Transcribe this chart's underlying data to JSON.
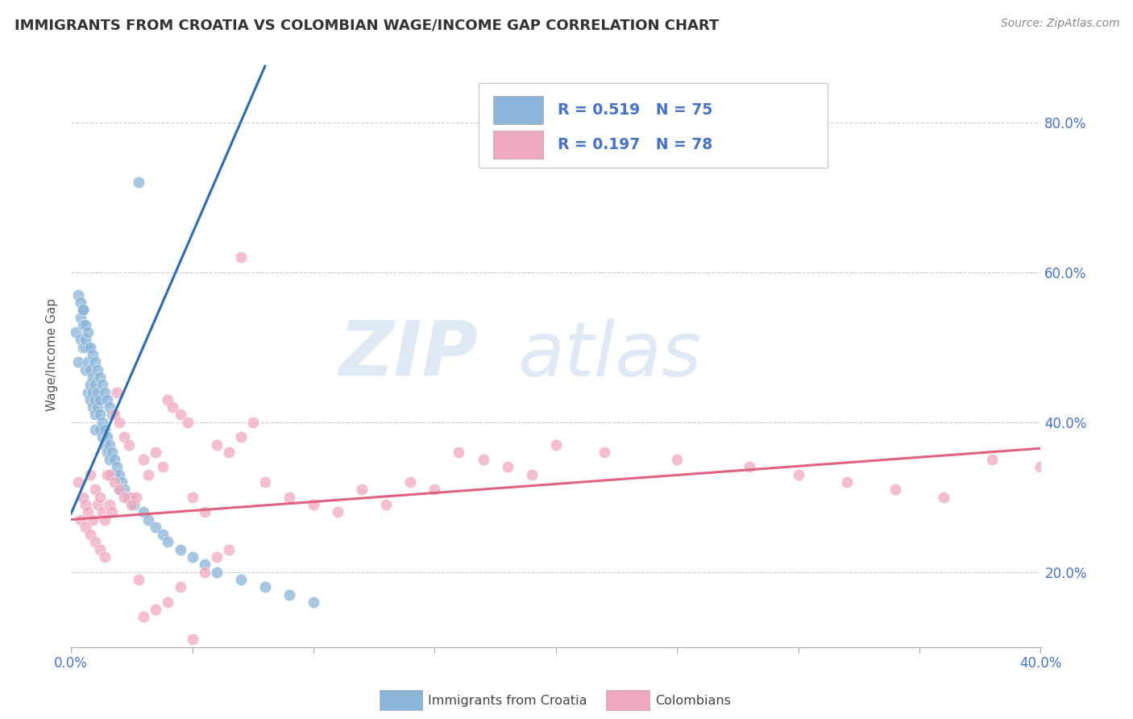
{
  "title": "IMMIGRANTS FROM CROATIA VS COLOMBIAN WAGE/INCOME GAP CORRELATION CHART",
  "source": "Source: ZipAtlas.com",
  "ylabel_label": "Wage/Income Gap",
  "xlim": [
    0.0,
    0.4
  ],
  "ylim": [
    0.1,
    0.88
  ],
  "yticks": [
    0.2,
    0.4,
    0.6,
    0.8
  ],
  "ytick_labels": [
    "20.0%",
    "40.0%",
    "60.0%",
    "80.0%"
  ],
  "xticks": [
    0.0,
    0.05,
    0.1,
    0.15,
    0.2,
    0.25,
    0.3,
    0.35,
    0.4
  ],
  "xtick_labels": [
    "0.0%",
    "",
    "",
    "",
    "",
    "",
    "",
    "",
    "40.0%"
  ],
  "blue_color": "#8ab4d8",
  "pink_color": "#f0a8bf",
  "blue_line_color": "#2a6db5",
  "pink_line_color": "#e06080",
  "legend_R1": "R = 0.519",
  "legend_N1": "N = 75",
  "legend_R2": "R = 0.197",
  "legend_N2": "N = 78",
  "legend_label1": "Immigrants from Croatia",
  "legend_label2": "Colombians",
  "watermark_ZIP": "ZIP",
  "watermark_atlas": "atlas",
  "tick_color": "#4472c4",
  "ylabel_color": "#555555",
  "blue_x": [
    0.002,
    0.003,
    0.004,
    0.004,
    0.005,
    0.005,
    0.005,
    0.006,
    0.006,
    0.007,
    0.007,
    0.007,
    0.008,
    0.008,
    0.008,
    0.009,
    0.009,
    0.009,
    0.01,
    0.01,
    0.01,
    0.01,
    0.011,
    0.011,
    0.012,
    0.012,
    0.012,
    0.013,
    0.013,
    0.014,
    0.014,
    0.015,
    0.015,
    0.016,
    0.016,
    0.017,
    0.018,
    0.018,
    0.019,
    0.02,
    0.02,
    0.021,
    0.022,
    0.024,
    0.026,
    0.028,
    0.03,
    0.032,
    0.035,
    0.038,
    0.04,
    0.045,
    0.05,
    0.055,
    0.06,
    0.07,
    0.08,
    0.09,
    0.1,
    0.003,
    0.004,
    0.005,
    0.006,
    0.006,
    0.007,
    0.008,
    0.009,
    0.01,
    0.011,
    0.012,
    0.013,
    0.014,
    0.015,
    0.016,
    0.017
  ],
  "blue_y": [
    0.52,
    0.48,
    0.51,
    0.54,
    0.5,
    0.53,
    0.55,
    0.5,
    0.47,
    0.5,
    0.48,
    0.44,
    0.47,
    0.45,
    0.43,
    0.46,
    0.44,
    0.42,
    0.45,
    0.43,
    0.41,
    0.39,
    0.44,
    0.42,
    0.43,
    0.41,
    0.39,
    0.4,
    0.38,
    0.39,
    0.37,
    0.38,
    0.36,
    0.37,
    0.35,
    0.36,
    0.35,
    0.33,
    0.34,
    0.33,
    0.31,
    0.32,
    0.31,
    0.3,
    0.29,
    0.72,
    0.28,
    0.27,
    0.26,
    0.25,
    0.24,
    0.23,
    0.22,
    0.21,
    0.2,
    0.19,
    0.18,
    0.17,
    0.16,
    0.57,
    0.56,
    0.55,
    0.53,
    0.51,
    0.52,
    0.5,
    0.49,
    0.48,
    0.47,
    0.46,
    0.45,
    0.44,
    0.43,
    0.42,
    0.41
  ],
  "pink_x": [
    0.003,
    0.005,
    0.006,
    0.007,
    0.008,
    0.009,
    0.01,
    0.011,
    0.012,
    0.013,
    0.014,
    0.015,
    0.016,
    0.017,
    0.018,
    0.019,
    0.02,
    0.022,
    0.024,
    0.025,
    0.027,
    0.03,
    0.032,
    0.035,
    0.038,
    0.04,
    0.042,
    0.045,
    0.048,
    0.05,
    0.055,
    0.06,
    0.065,
    0.07,
    0.075,
    0.08,
    0.09,
    0.1,
    0.11,
    0.12,
    0.13,
    0.14,
    0.15,
    0.16,
    0.17,
    0.18,
    0.19,
    0.2,
    0.22,
    0.25,
    0.28,
    0.3,
    0.32,
    0.34,
    0.36,
    0.38,
    0.4,
    0.004,
    0.006,
    0.008,
    0.01,
    0.012,
    0.014,
    0.016,
    0.018,
    0.02,
    0.022,
    0.025,
    0.028,
    0.03,
    0.035,
    0.04,
    0.045,
    0.05,
    0.055,
    0.06,
    0.065,
    0.07
  ],
  "pink_y": [
    0.32,
    0.3,
    0.29,
    0.28,
    0.33,
    0.27,
    0.31,
    0.29,
    0.3,
    0.28,
    0.27,
    0.33,
    0.29,
    0.28,
    0.41,
    0.44,
    0.4,
    0.38,
    0.37,
    0.3,
    0.3,
    0.35,
    0.33,
    0.36,
    0.34,
    0.43,
    0.42,
    0.41,
    0.4,
    0.3,
    0.28,
    0.37,
    0.36,
    0.38,
    0.4,
    0.32,
    0.3,
    0.29,
    0.28,
    0.31,
    0.29,
    0.32,
    0.31,
    0.36,
    0.35,
    0.34,
    0.33,
    0.37,
    0.36,
    0.35,
    0.34,
    0.33,
    0.32,
    0.31,
    0.3,
    0.35,
    0.34,
    0.27,
    0.26,
    0.25,
    0.24,
    0.23,
    0.22,
    0.33,
    0.32,
    0.31,
    0.3,
    0.29,
    0.19,
    0.14,
    0.15,
    0.16,
    0.18,
    0.11,
    0.2,
    0.22,
    0.23,
    0.62
  ],
  "blue_trend_x": [
    0.0,
    0.08
  ],
  "blue_trend_y": [
    0.278,
    0.875
  ],
  "pink_trend_x": [
    0.0,
    0.4
  ],
  "pink_trend_y": [
    0.27,
    0.365
  ]
}
